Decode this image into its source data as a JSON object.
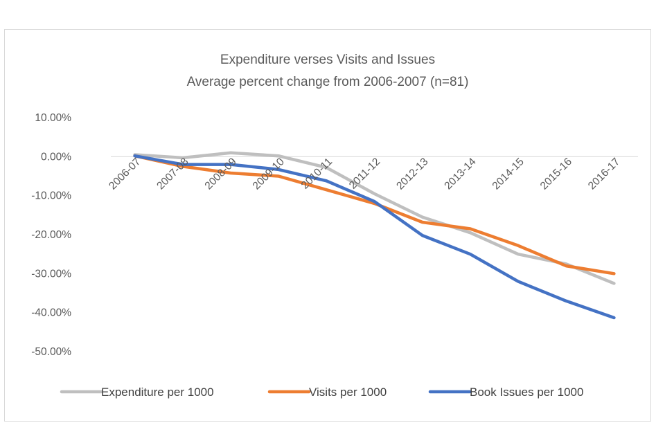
{
  "chart_data": {
    "type": "line",
    "title": "Expenditure verses Visits and Issues",
    "subtitle": "Average percent change from 2006-2007 (n=81)",
    "xlabel": "",
    "ylabel": "",
    "x": [
      "2006-07",
      "2007-08",
      "2008-09",
      "2009-10",
      "2010-11",
      "2011-12",
      "2012-13",
      "2013-14",
      "2014-15",
      "2015-16",
      "2016-17"
    ],
    "y_ticks": [
      10,
      0,
      -10,
      -20,
      -30,
      -40,
      -50
    ],
    "y_tick_labels": [
      "10.00%",
      "0.00%",
      "-10.00%",
      "-20.00%",
      "-30.00%",
      "-40.00%",
      "-50.00%"
    ],
    "ylim": [
      -50,
      10
    ],
    "legend_position": "bottom",
    "gridlines": false,
    "series": [
      {
        "name": "Expenditure per 1000",
        "color": "#BFBFBF",
        "values": [
          0.5,
          -0.3,
          1.0,
          0.2,
          -2.8,
          -9.5,
          -15.5,
          -19.5,
          -25.0,
          -27.5,
          -32.5
        ]
      },
      {
        "name": "Visits per 1000",
        "color": "#ED7D31",
        "values": [
          0.2,
          -2.5,
          -4.2,
          -5.0,
          -8.5,
          -12.0,
          -16.8,
          -18.5,
          -22.8,
          -28.0,
          -30.0
        ]
      },
      {
        "name": "Book Issues per 1000",
        "color": "#4472C4",
        "values": [
          0.2,
          -2.0,
          -2.0,
          -3.3,
          -6.2,
          -11.5,
          -20.2,
          -25.0,
          -32.0,
          -37.0,
          -41.3
        ]
      }
    ]
  }
}
